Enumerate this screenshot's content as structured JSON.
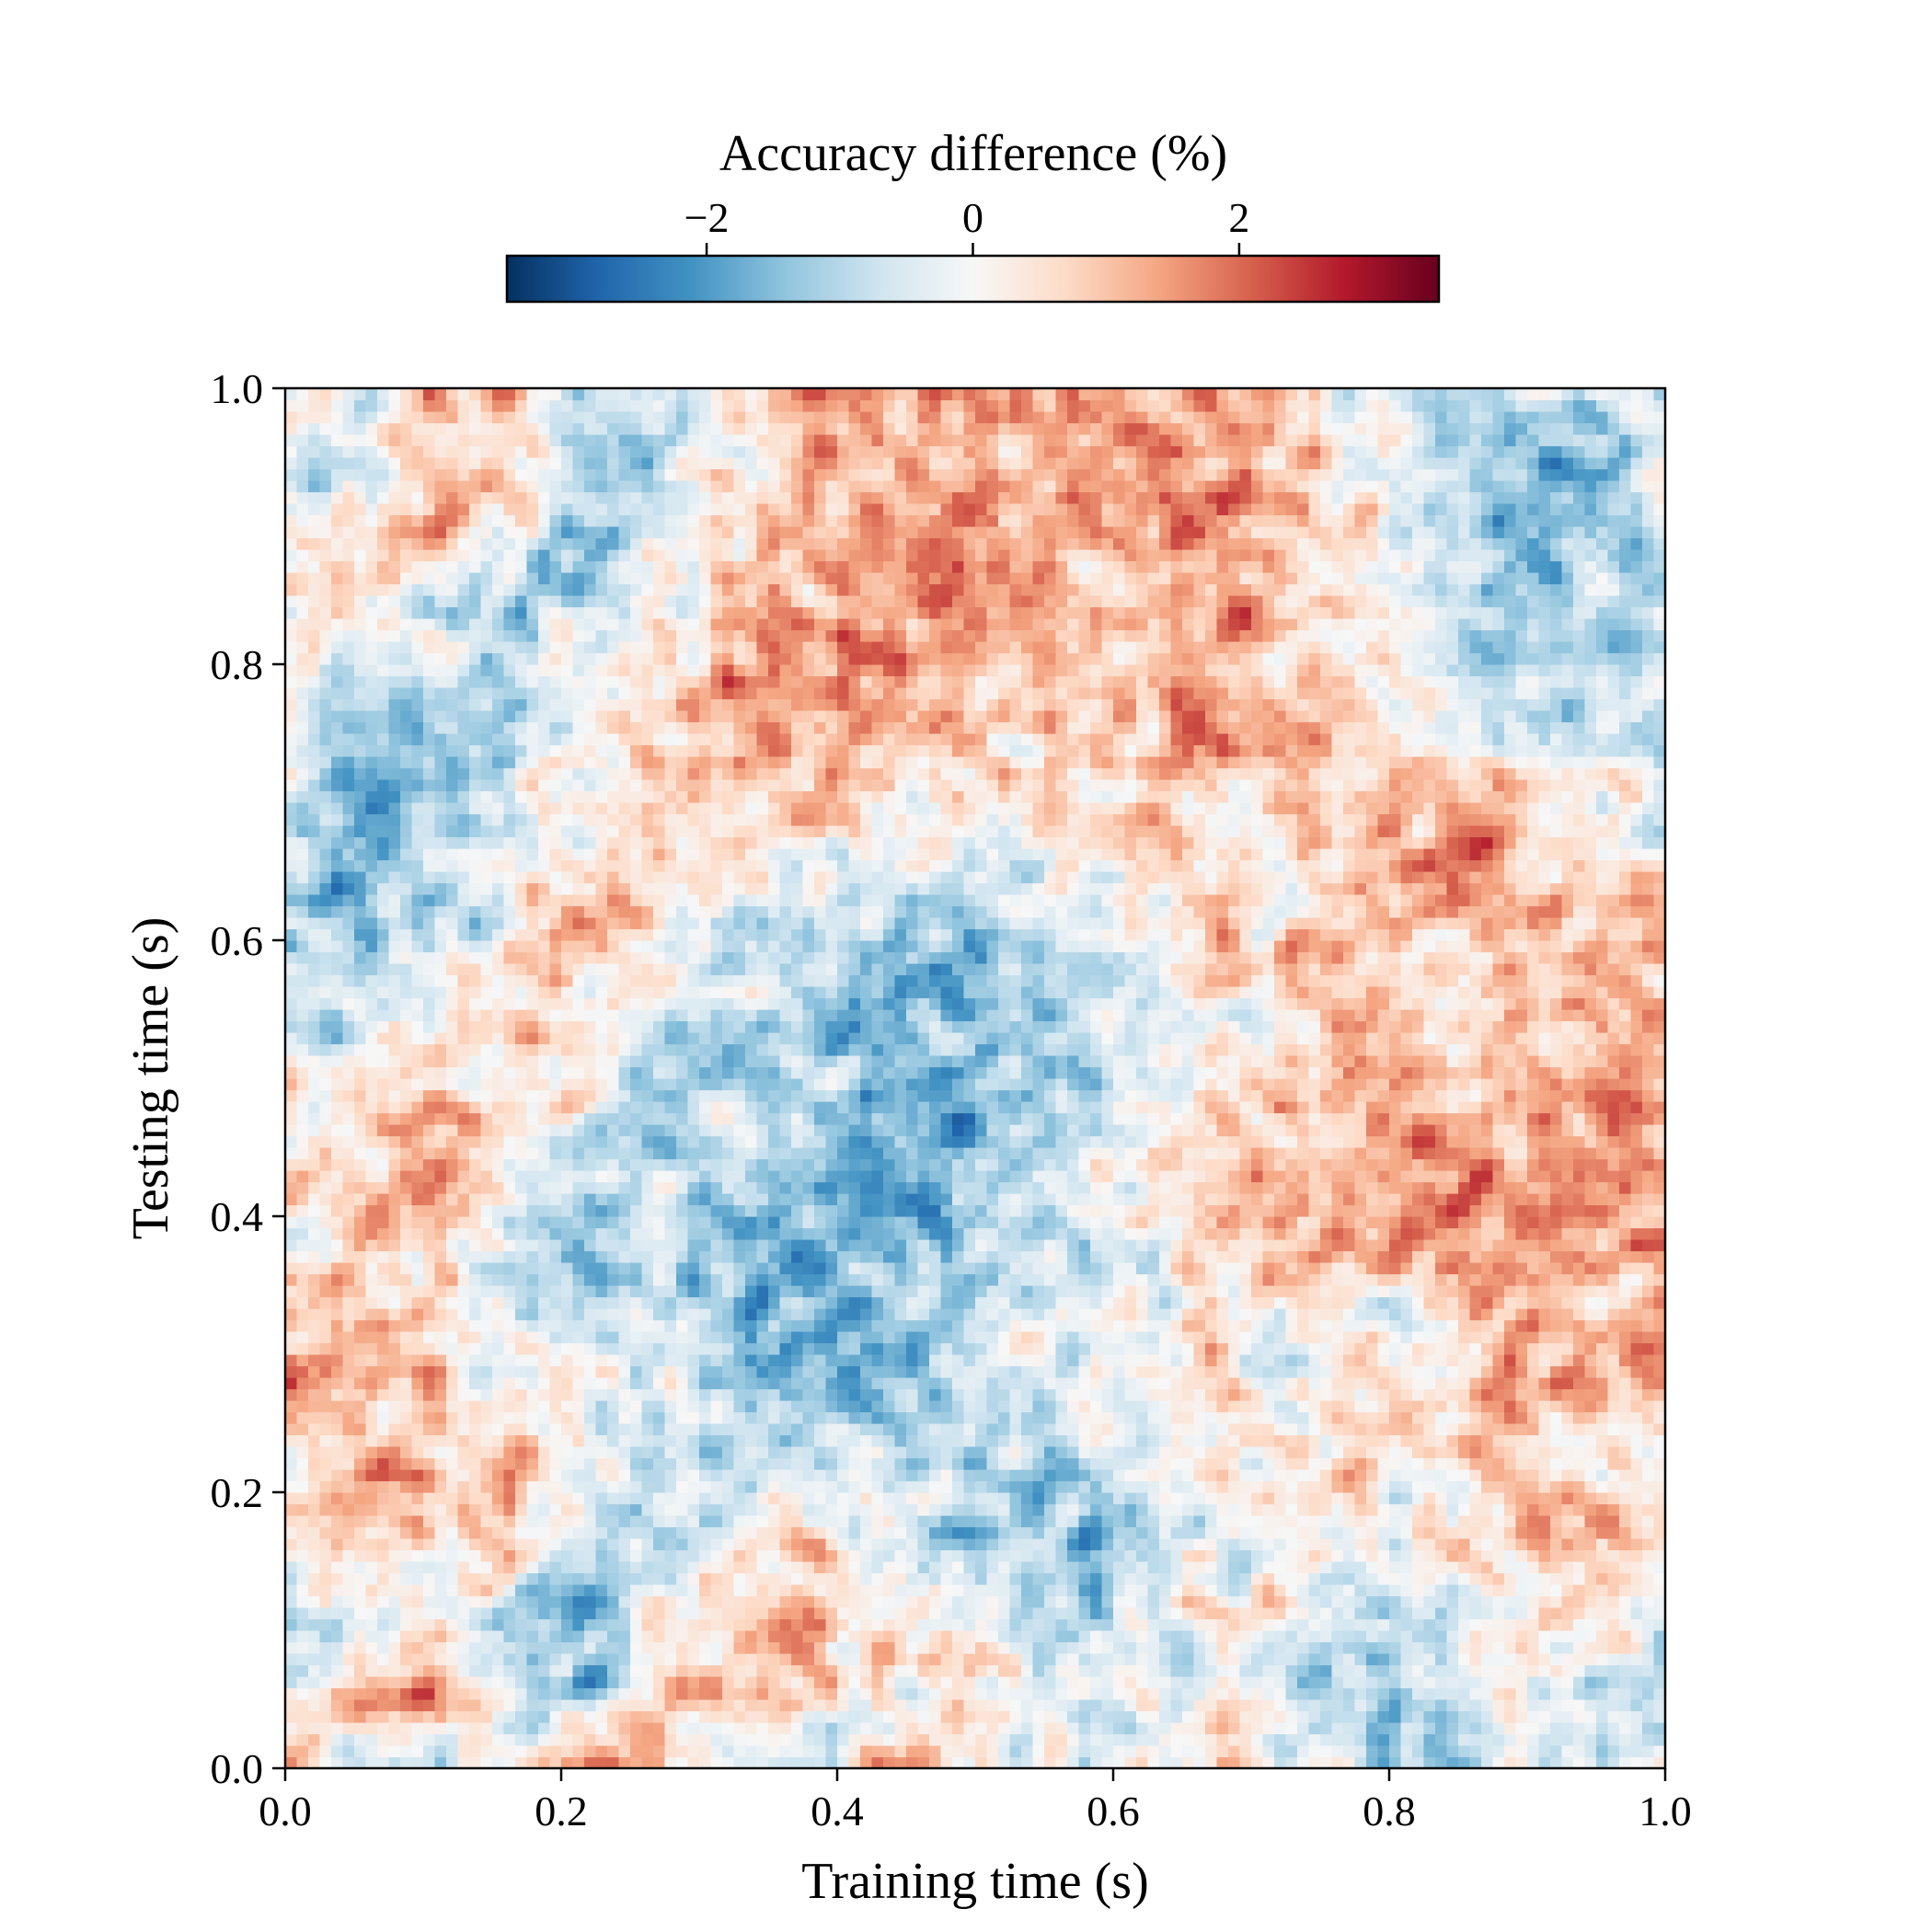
{
  "chart_data": {
    "type": "heatmap",
    "title": "",
    "xlabel": "Training time (s)",
    "ylabel": "Testing time (s)",
    "xlim": [
      0.0,
      1.0
    ],
    "ylim": [
      0.0,
      1.0
    ],
    "xticks": [
      0.0,
      0.2,
      0.4,
      0.6,
      0.8,
      1.0
    ],
    "yticks": [
      0.0,
      0.2,
      0.4,
      0.6,
      0.8,
      1.0
    ],
    "xtick_labels": [
      "0.0",
      "0.2",
      "0.4",
      "0.6",
      "0.8",
      "1.0"
    ],
    "ytick_labels": [
      "0.0",
      "0.2",
      "0.4",
      "0.6",
      "0.8",
      "1.0"
    ],
    "grid": false,
    "colormap": "RdBu_r",
    "colorbar": {
      "label": "Accuracy difference (%)",
      "placement": "top",
      "vmin": -3.5,
      "vmax": 3.5,
      "ticks": [
        -2,
        0,
        2
      ],
      "tick_labels": [
        "−2",
        "0",
        "2"
      ]
    },
    "value_grid": {
      "description_rows": "testing time from 0.0 (first row) to 1.0 (last row)",
      "description_cols": "training time from 0.0 (first col) to 1.0 (last col)",
      "values": [
        [
          0.3,
          -0.5,
          -0.8,
          0.6,
          1.2,
          0.8,
          -0.4,
          -0.6,
          0.5,
          1.4,
          -0.3,
          -0.9,
          0.2,
          0.7,
          -0.2,
          -0.9,
          -1.3,
          -0.2,
          0.4,
          -0.3
        ],
        [
          -0.4,
          1.2,
          1.4,
          -0.6,
          -1.3,
          0.4,
          0.9,
          1.0,
          -0.3,
          0.6,
          0.2,
          -0.5,
          -0.2,
          -0.4,
          -1.0,
          -1.6,
          -0.8,
          0.3,
          -0.6,
          -0.8
        ],
        [
          -1.0,
          -0.6,
          0.5,
          -1.2,
          -1.6,
          -0.2,
          0.6,
          1.1,
          0.8,
          -0.3,
          -0.7,
          -1.1,
          -0.4,
          0.3,
          0.1,
          -0.6,
          -0.4,
          0.5,
          0.6,
          -0.3
        ],
        [
          0.8,
          1.3,
          0.2,
          1.0,
          -0.8,
          -1.4,
          -0.3,
          0.4,
          -0.4,
          -0.9,
          -1.2,
          -1.6,
          -0.7,
          -0.1,
          0.2,
          -0.5,
          0.6,
          0.3,
          1.1,
          0.7
        ],
        [
          0.6,
          1.5,
          1.0,
          1.3,
          0.5,
          -0.6,
          -0.5,
          -0.2,
          0.1,
          -0.8,
          -1.3,
          -0.9,
          -0.2,
          0.4,
          0.6,
          0.2,
          0.3,
          0.9,
          0.8,
          0.4
        ],
        [
          1.2,
          0.7,
          1.0,
          -0.3,
          0.2,
          -0.2,
          -0.9,
          -1.4,
          -1.5,
          -1.1,
          -0.8,
          -0.4,
          -0.1,
          0.2,
          0.0,
          0.6,
          0.5,
          1.1,
          0.6,
          1.0
        ],
        [
          1.4,
          1.6,
          0.8,
          -0.2,
          -0.5,
          -0.7,
          -1.6,
          -1.9,
          -1.7,
          -1.2,
          -0.6,
          -0.3,
          0.1,
          0.4,
          -0.2,
          -0.4,
          0.4,
          1.2,
          1.2,
          1.5
        ],
        [
          -0.4,
          0.3,
          0.7,
          -1.0,
          -1.4,
          -0.6,
          -1.2,
          -2.0,
          -1.8,
          -1.1,
          -0.8,
          -0.5,
          0.0,
          0.8,
          1.2,
          0.9,
          1.4,
          1.6,
          1.3,
          0.9
        ],
        [
          0.1,
          1.3,
          1.6,
          -0.1,
          -0.9,
          -0.6,
          -0.8,
          -1.6,
          -1.9,
          -1.4,
          -0.9,
          -0.2,
          0.2,
          0.9,
          1.4,
          1.6,
          1.8,
          1.3,
          1.5,
          1.2
        ],
        [
          0.5,
          0.2,
          1.2,
          0.4,
          -0.3,
          -1.0,
          -0.6,
          -0.9,
          -1.5,
          -2.0,
          -1.4,
          -0.6,
          0.1,
          0.6,
          1.0,
          1.5,
          1.2,
          1.1,
          1.4,
          1.8
        ],
        [
          -0.6,
          -0.4,
          0.6,
          0.9,
          0.2,
          -0.5,
          -1.1,
          -1.3,
          -1.7,
          -1.2,
          -1.6,
          -1.0,
          -0.4,
          0.2,
          0.9,
          1.1,
          0.8,
          0.5,
          1.1,
          1.4
        ],
        [
          -1.1,
          -0.9,
          -0.3,
          0.5,
          0.8,
          0.1,
          -0.4,
          -0.8,
          -1.3,
          -1.8,
          -1.3,
          -0.7,
          -0.2,
          0.4,
          1.1,
          0.8,
          0.4,
          0.9,
          1.6,
          1.1
        ],
        [
          -1.0,
          -1.4,
          -0.8,
          -0.2,
          0.6,
          0.3,
          -0.2,
          -0.6,
          -0.4,
          -0.9,
          -0.6,
          -0.2,
          0.3,
          0.7,
          0.4,
          1.0,
          1.3,
          1.2,
          0.8,
          0.5
        ],
        [
          -1.2,
          -1.6,
          -1.1,
          -0.6,
          0.4,
          0.7,
          0.6,
          0.9,
          0.4,
          -0.3,
          0.1,
          0.5,
          0.6,
          0.3,
          0.7,
          1.2,
          1.4,
          0.9,
          0.2,
          -0.1
        ],
        [
          -0.6,
          -1.3,
          -1.5,
          -0.8,
          0.2,
          0.9,
          1.0,
          1.3,
          1.2,
          0.8,
          0.4,
          0.9,
          1.1,
          1.0,
          1.2,
          1.1,
          0.5,
          -0.2,
          -0.4,
          -0.6
        ],
        [
          -0.2,
          -0.9,
          -1.2,
          -0.4,
          -0.3,
          0.6,
          1.1,
          1.5,
          1.4,
          1.2,
          0.6,
          0.8,
          1.4,
          1.6,
          1.2,
          0.4,
          -0.3,
          -0.8,
          -0.7,
          -0.9
        ],
        [
          0.4,
          0.5,
          -0.6,
          -1.0,
          -0.8,
          0.2,
          0.8,
          1.2,
          1.6,
          1.7,
          1.3,
          0.9,
          1.1,
          1.3,
          0.6,
          -0.1,
          -0.6,
          -1.2,
          -1.1,
          -0.4
        ],
        [
          -0.3,
          1.1,
          0.8,
          -0.5,
          -1.1,
          -0.5,
          0.5,
          1.1,
          1.4,
          1.8,
          1.5,
          1.1,
          1.5,
          1.8,
          1.1,
          0.3,
          -0.4,
          -1.5,
          -1.3,
          -0.7
        ],
        [
          -0.8,
          -0.3,
          0.7,
          1.2,
          -0.4,
          -1.2,
          0.2,
          0.9,
          1.6,
          1.3,
          1.2,
          1.7,
          1.9,
          1.4,
          0.7,
          0.2,
          -0.8,
          -1.4,
          -1.6,
          -1.0
        ],
        [
          0.2,
          -0.7,
          1.0,
          1.3,
          -0.9,
          -0.6,
          0.4,
          1.0,
          1.4,
          1.9,
          1.2,
          1.3,
          1.1,
          1.6,
          0.4,
          -0.5,
          -1.0,
          -1.3,
          -0.8,
          -0.2
        ]
      ]
    }
  }
}
